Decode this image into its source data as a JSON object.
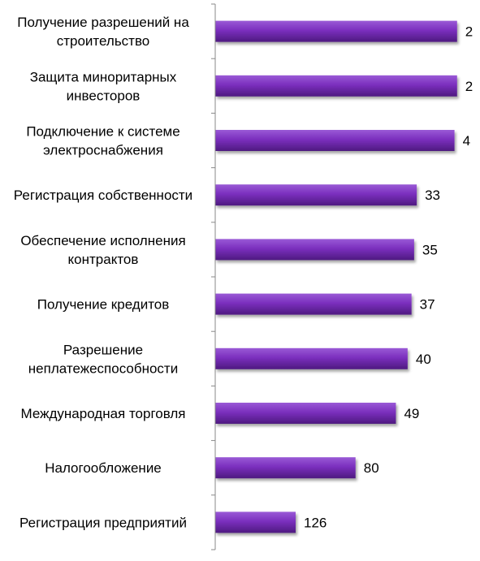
{
  "chart_data": {
    "type": "bar",
    "orientation": "horizontal",
    "categories": [
      "Получение разрешений на строительство",
      "Защита миноритарных инвесторов",
      "Подключение к системе электроснабжения",
      "Регистрация собственности",
      "Обеспечение исполнения контрактов",
      "Получение кредитов",
      "Разрешение неплатежеспособности",
      "Международная торговля",
      "Налогообложение",
      "Регистрация предприятий"
    ],
    "category_lines": [
      [
        "Получение разрешений на",
        "строительство"
      ],
      [
        "Защита миноритарных",
        "инвесторов"
      ],
      [
        "Подключение к системе",
        "электроснабжения"
      ],
      [
        "Регистрация собственности"
      ],
      [
        "Обеспечение исполнения",
        "контрактов"
      ],
      [
        "Получение кредитов"
      ],
      [
        "Разрешение",
        "неплатежеспособности"
      ],
      [
        "Международная торговля"
      ],
      [
        "Налогообложение"
      ],
      [
        "Регистрация предприятий"
      ]
    ],
    "values": [
      2,
      2,
      4,
      33,
      35,
      37,
      40,
      49,
      80,
      126
    ],
    "value_labels": [
      "2",
      "2",
      "4",
      "33",
      "35",
      "37",
      "40",
      "49",
      "80",
      "126"
    ],
    "reversed_value_axis": true,
    "axis_ticks_shown": false,
    "grid": false,
    "legend": "none",
    "colors": {
      "bar_fill": "#7b2fbe",
      "bar_top": "#9a5ad6",
      "bar_bottom": "#4e1a80",
      "axis": "#888888",
      "text": "#000000"
    }
  }
}
